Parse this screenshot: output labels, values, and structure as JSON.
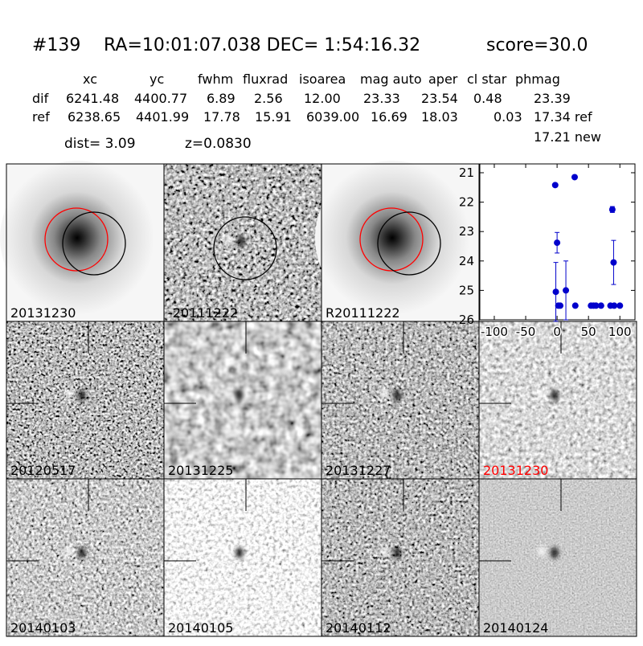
{
  "header": {
    "id": "#139",
    "coords": "RA=10:01:07.038 DEC= 1:54:16.32",
    "score": "score=30.0"
  },
  "table": {
    "columns": [
      "xc",
      "yc",
      "fwhm",
      "fluxrad",
      "isoarea",
      "mag auto",
      "aper",
      "cl star",
      "phmag"
    ],
    "rows": [
      [
        "dif",
        "6241.48",
        "4400.77",
        "6.89",
        "2.56",
        "12.00",
        "23.33",
        "23.54",
        "0.48",
        "23.39"
      ],
      [
        "ref",
        "6238.65",
        "4401.99",
        "17.78",
        "15.91",
        "6039.00",
        "16.69",
        "18.03",
        "0.03",
        "17.34 ref"
      ]
    ],
    "extra": "17.21 new"
  },
  "dist": "dist=  3.09",
  "redshift": "z=0.0830",
  "panels": [
    "20131230",
    "-20111222",
    "R20111222",
    "20120517",
    "20131225",
    "20131227",
    "20131230",
    "20140103",
    "20140105",
    "20140112",
    "20140124"
  ],
  "chart_data": {
    "type": "scatter",
    "xlim": [
      -123,
      124
    ],
    "ylim": [
      26,
      20.7
    ],
    "xticks": [
      -100,
      -50,
      0,
      50,
      100
    ],
    "yticks": [
      21,
      22,
      23,
      24,
      25,
      26
    ],
    "inverted_y": true,
    "series": [
      {
        "color": "#0000cc",
        "x": [
          -3,
          -2,
          0,
          2,
          5,
          14,
          28,
          29,
          54,
          58,
          62,
          70,
          85,
          88,
          90,
          91,
          100
        ],
        "values": [
          21.42,
          25.05,
          23.38,
          25.52,
          25.52,
          25.0,
          21.15,
          25.52,
          25.52,
          25.52,
          25.52,
          25.52,
          25.52,
          22.25,
          24.05,
          25.52,
          25.52
        ],
        "errors": [
          0.05,
          1.0,
          0.35,
          0.05,
          0.05,
          1.0,
          0.05,
          0.05,
          0.05,
          0.05,
          0.05,
          0.05,
          0.05,
          0.1,
          0.75,
          0.05,
          0.05
        ]
      }
    ]
  }
}
